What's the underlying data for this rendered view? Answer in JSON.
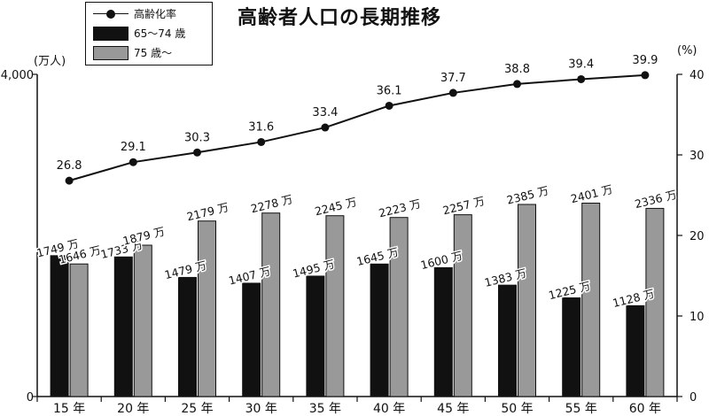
{
  "chart_data": {
    "type": "bar",
    "title": "高齢者人口の長期推移",
    "left_unit": "(万人)",
    "right_unit": "(%)",
    "categories": [
      "15 年",
      "20 年",
      "25 年",
      "30 年",
      "35 年",
      "40 年",
      "45 年",
      "50 年",
      "55 年",
      "60 年"
    ],
    "left_axis": {
      "ylim": [
        0,
        4000
      ],
      "ticks": [
        0,
        4000
      ],
      "tick_labels": [
        "0",
        "4,000"
      ]
    },
    "right_axis": {
      "ylim": [
        0,
        40
      ],
      "ticks": [
        0,
        10,
        20,
        30,
        40
      ],
      "tick_labels": [
        "0",
        "10",
        "20",
        "30",
        "40"
      ]
    },
    "series": [
      {
        "name": "65〜74 歳",
        "kind": "bar",
        "axis": "left",
        "color": "#111111",
        "values": [
          1749,
          1733,
          1479,
          1407,
          1495,
          1645,
          1600,
          1383,
          1225,
          1128
        ],
        "labels": [
          "1749 万",
          "1733 万",
          "1479 万",
          "1407 万",
          "1495 万",
          "1645 万",
          "1600 万",
          "1383 万",
          "1225 万",
          "1128 万"
        ]
      },
      {
        "name": "75 歳〜",
        "kind": "bar",
        "axis": "left",
        "color": "#999999",
        "values": [
          1646,
          1879,
          2179,
          2278,
          2245,
          2223,
          2257,
          2385,
          2401,
          2336
        ],
        "labels": [
          "1646 万",
          "1879 万",
          "2179 万",
          "2278 万",
          "2245 万",
          "2223 万",
          "2257 万",
          "2385 万",
          "2401 万",
          "2336 万"
        ]
      },
      {
        "name": "高齢化率",
        "kind": "line",
        "axis": "right",
        "color": "#111111",
        "values": [
          26.8,
          29.1,
          30.3,
          31.6,
          33.4,
          36.1,
          37.7,
          38.8,
          39.4,
          39.9
        ],
        "labels": [
          "26.8",
          "29.1",
          "30.3",
          "31.6",
          "33.4",
          "36.1",
          "37.7",
          "38.8",
          "39.4",
          "39.9"
        ]
      }
    ],
    "legend": {
      "position": "top-left"
    },
    "grid": false
  }
}
